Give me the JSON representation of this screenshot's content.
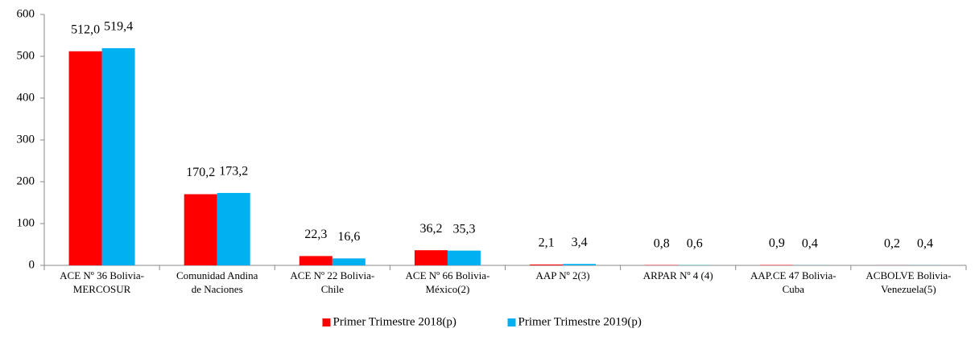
{
  "chart_data": {
    "type": "bar",
    "categories": [
      [
        "ACE Nº 36 Bolivia-",
        "MERCOSUR"
      ],
      [
        "Comunidad Andina",
        "de Naciones"
      ],
      [
        "ACE Nº 22  Bolivia-",
        "Chile"
      ],
      [
        "ACE Nº 66  Bolivia-",
        "México(2)"
      ],
      [
        "AAP Nº 2(3)"
      ],
      [
        "ARPAR Nº 4 (4)"
      ],
      [
        "AAP.CE 47 Bolivia-",
        "Cuba"
      ],
      [
        "ACBOLVE Bolivia-",
        "Venezuela(5)"
      ]
    ],
    "series": [
      {
        "name": "Primer Trimestre 2018(p)",
        "color": "#ff0000",
        "values": [
          512.0,
          170.2,
          22.3,
          36.2,
          2.1,
          0.8,
          0.9,
          0.2
        ],
        "value_labels": [
          "512,0",
          "170,2",
          "22,3",
          "36,2",
          "2,1",
          "0,8",
          "0,9",
          "0,2"
        ]
      },
      {
        "name": "Primer Trimestre 2019(p)",
        "color": "#00b0f0",
        "values": [
          519.4,
          173.2,
          16.6,
          35.3,
          3.4,
          0.6,
          0.4,
          0.4
        ],
        "value_labels": [
          "519,4",
          "173,2",
          "16,6",
          "35,3",
          "3,4",
          "0,6",
          "0,4",
          "0,4"
        ]
      }
    ],
    "ylim": [
      0,
      600
    ],
    "yticks": [
      0,
      100,
      200,
      300,
      400,
      500,
      600
    ],
    "grid": false,
    "legend": "bottom"
  }
}
